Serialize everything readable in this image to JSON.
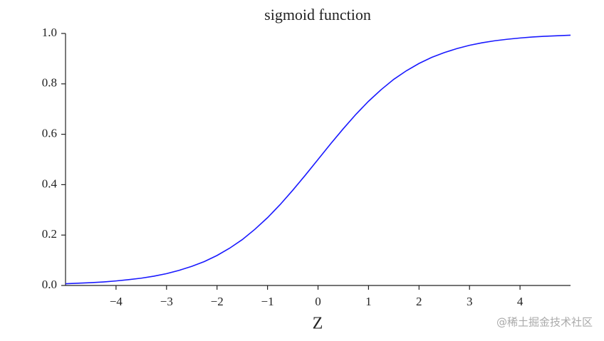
{
  "chart_data": {
    "type": "line",
    "title": "sigmoid function",
    "x_label": "Z",
    "x": [
      -5,
      -4.75,
      -4.5,
      -4.25,
      -4,
      -3.75,
      -3.5,
      -3.25,
      -3,
      -2.75,
      -2.5,
      -2.25,
      -2,
      -1.75,
      -1.5,
      -1.25,
      -1,
      -0.75,
      -0.5,
      -0.25,
      0,
      0.25,
      0.5,
      0.75,
      1,
      1.25,
      1.5,
      1.75,
      2,
      2.25,
      2.5,
      2.75,
      3,
      3.25,
      3.5,
      3.75,
      4,
      4.25,
      4.5,
      4.75,
      5
    ],
    "values": [
      0.007,
      0.009,
      0.011,
      0.014,
      0.018,
      0.023,
      0.029,
      0.037,
      0.047,
      0.06,
      0.076,
      0.095,
      0.119,
      0.148,
      0.182,
      0.223,
      0.269,
      0.321,
      0.378,
      0.438,
      0.5,
      0.562,
      0.622,
      0.679,
      0.731,
      0.777,
      0.818,
      0.852,
      0.881,
      0.905,
      0.924,
      0.94,
      0.953,
      0.963,
      0.971,
      0.977,
      0.982,
      0.986,
      0.989,
      0.991,
      0.993
    ],
    "color": "#1a1aff",
    "xlim": [
      -5,
      5
    ],
    "xticks": [
      {
        "value": -4,
        "label": "−4"
      },
      {
        "value": -3,
        "label": "−3"
      },
      {
        "value": -2,
        "label": "−2"
      },
      {
        "value": -1,
        "label": "−1"
      },
      0,
      1,
      2,
      3,
      4
    ],
    "ylim": [
      0,
      1
    ],
    "yticks": [
      {
        "value": 0,
        "label": "0.0"
      },
      0.2,
      0.4,
      0.6,
      0.8,
      {
        "value": 1,
        "label": "1.0"
      }
    ],
    "grid": false,
    "watermark": "@稀土掘金技术社区"
  }
}
